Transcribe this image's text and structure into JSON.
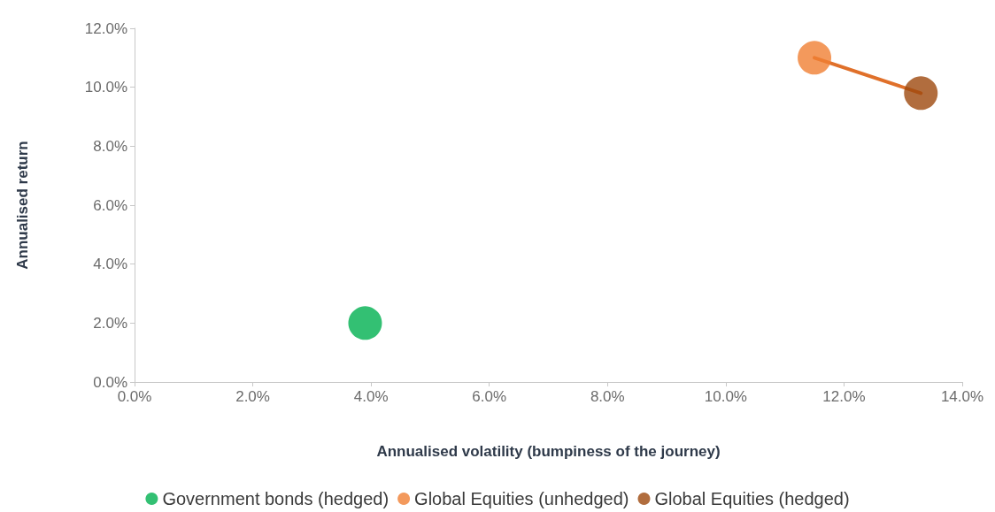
{
  "chart_data": {
    "type": "scatter",
    "xlabel": "Annualised volatility (bumpiness of the journey)",
    "ylabel": "Annualised return",
    "xlim": [
      0,
      14
    ],
    "xticks": [
      {
        "value": 0,
        "label": "0.0%"
      },
      {
        "value": 2,
        "label": "2.0%"
      },
      {
        "value": 4,
        "label": "4.0%"
      },
      {
        "value": 6,
        "label": "6.0%"
      },
      {
        "value": 8,
        "label": "8.0%"
      },
      {
        "value": 10,
        "label": "10.0%"
      },
      {
        "value": 12,
        "label": "12.0%"
      },
      {
        "value": 14,
        "label": "14.0%"
      }
    ],
    "ylim": [
      0,
      12
    ],
    "yticks": [
      {
        "value": 0,
        "label": "0.0%"
      },
      {
        "value": 2,
        "label": "2.0%"
      },
      {
        "value": 4,
        "label": "4.0%"
      },
      {
        "value": 6,
        "label": "6.0%"
      },
      {
        "value": 8,
        "label": "8.0%"
      },
      {
        "value": 10,
        "label": "10.0%"
      },
      {
        "value": 12,
        "label": "12.0%"
      }
    ],
    "grid": false,
    "legend": "bottom",
    "marker": "circle",
    "series": [
      {
        "type": "line",
        "color": "#e0702a",
        "x": [
          11.5,
          13.3
        ],
        "values": [
          11.0,
          9.8
        ],
        "marker": "none",
        "line_style": "solid"
      },
      {
        "name": "Government bonds (hedged)",
        "color": "#00b050",
        "x": [
          3.9
        ],
        "values": [
          2.0
        ]
      },
      {
        "name": "Global Equities (unhedged)",
        "color": "#f08033",
        "x": [
          11.5
        ],
        "values": [
          11.0
        ]
      },
      {
        "name": "Global Equities (hedged)",
        "color": "#9e480e",
        "x": [
          13.3
        ],
        "values": [
          9.8
        ]
      }
    ]
  }
}
